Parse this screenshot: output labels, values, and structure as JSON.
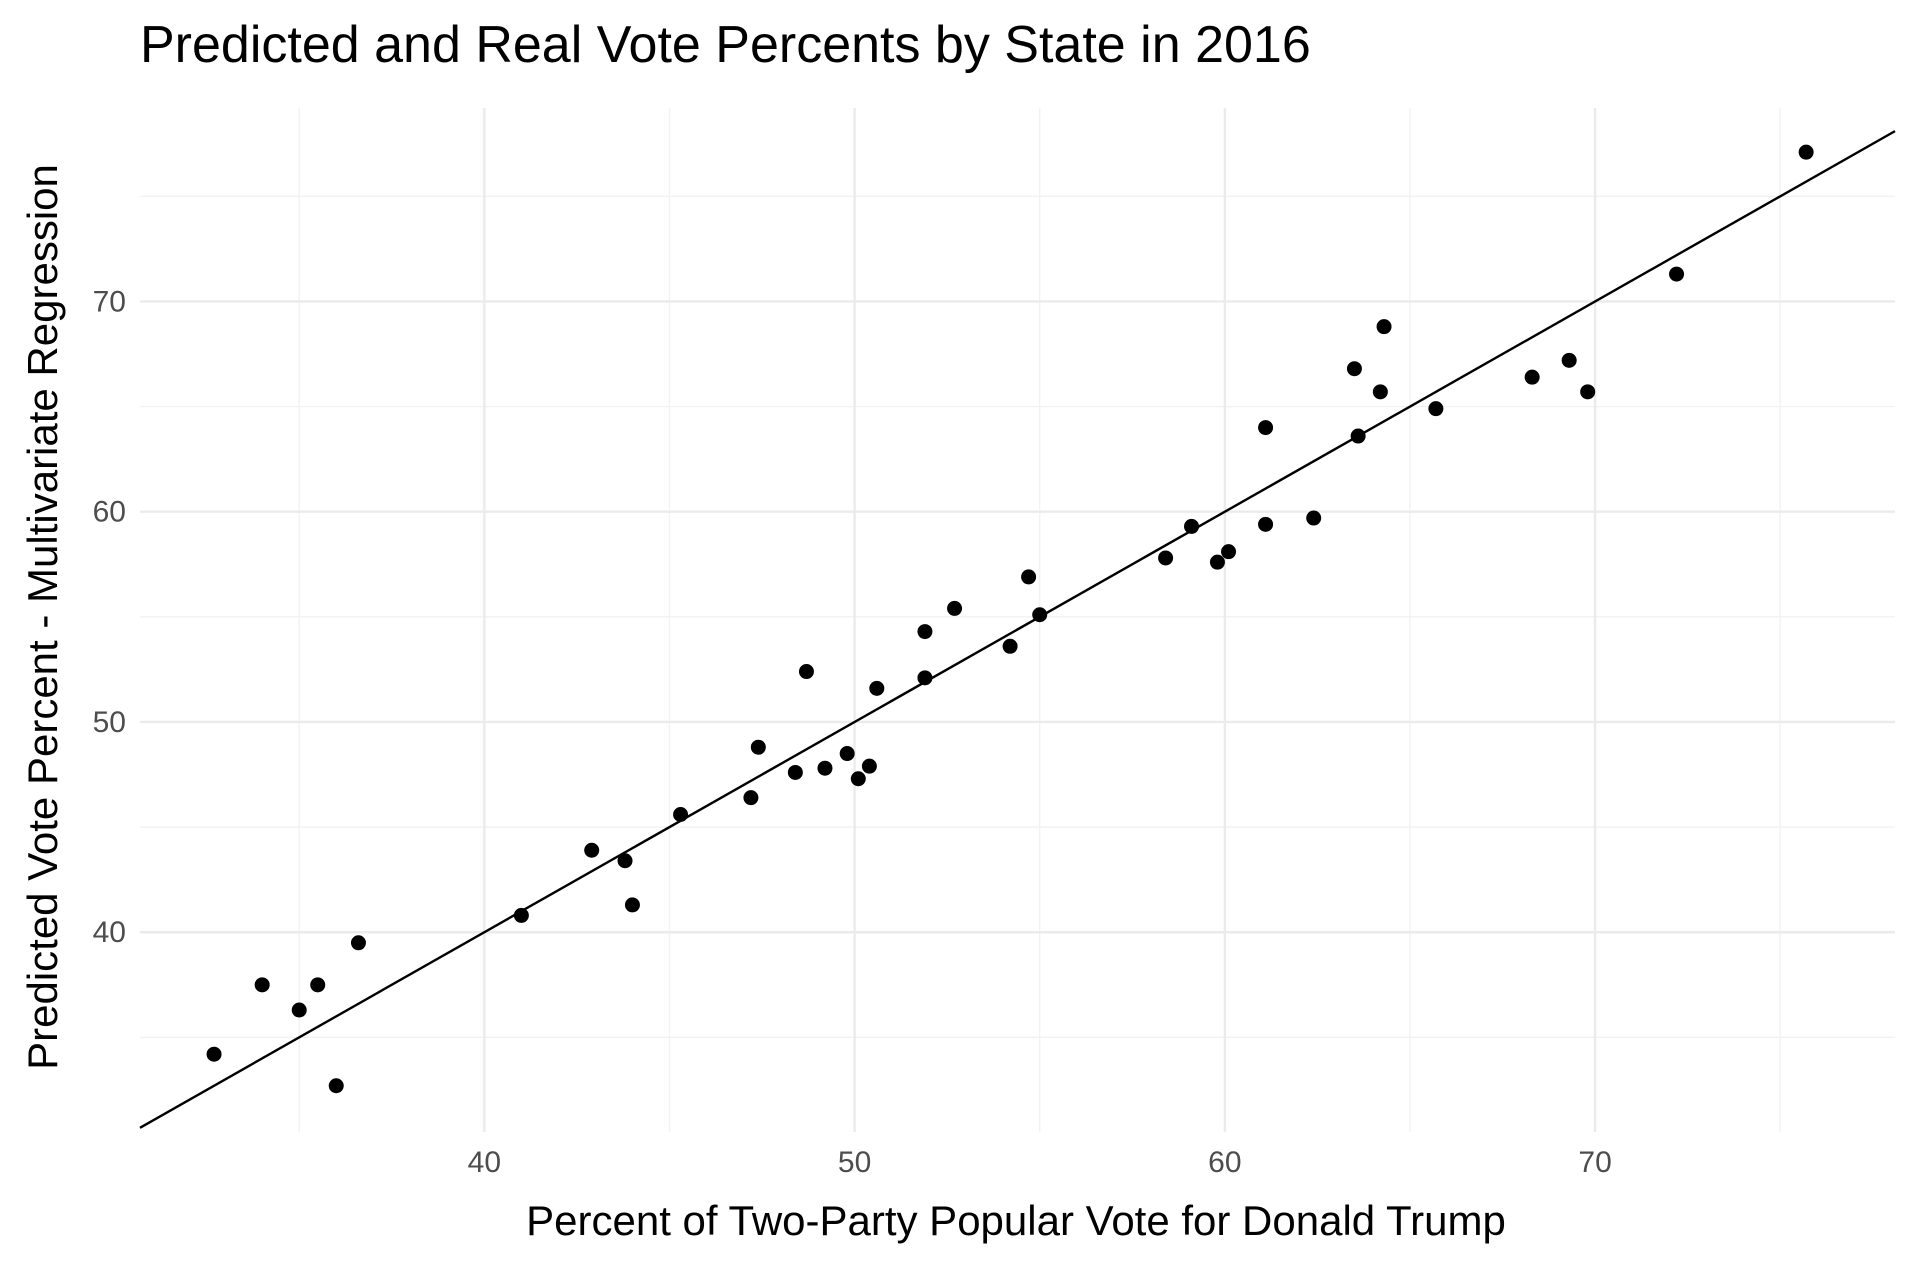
{
  "chart_data": {
    "type": "scatter",
    "title": "Predicted and Real Vote Percents by State in 2016",
    "xlabel": "Percent of Two-Party Popular Vote for Donald Trump",
    "ylabel": "Predicted Vote Percent - Multivariate Regression",
    "xlim": [
      30.7,
      78.1
    ],
    "ylim": [
      30.5,
      79.2
    ],
    "x_ticks": [
      40,
      50,
      60,
      70
    ],
    "y_ticks": [
      40,
      50,
      60,
      70
    ],
    "x_minor_ticks": [
      35,
      45,
      55,
      65,
      75
    ],
    "y_minor_ticks": [
      35,
      45,
      55,
      65,
      75
    ],
    "grid": true,
    "reference_line": {
      "type": "identity",
      "slope": 1,
      "intercept": 0
    },
    "point_color": "#000000",
    "series": [
      {
        "x": [
          32.7,
          34.0,
          35.0,
          35.5,
          36.0,
          36.6,
          41.0,
          42.9,
          43.8,
          44.0,
          45.3,
          47.2,
          47.4,
          48.4,
          48.7,
          49.2,
          49.8,
          50.1,
          50.4,
          50.6,
          51.9,
          51.9,
          52.7,
          54.2,
          54.7,
          55.0,
          58.4,
          59.1,
          59.8,
          60.1,
          61.1,
          61.1,
          62.4,
          63.5,
          63.6,
          64.2,
          64.3,
          65.7,
          68.3,
          69.3,
          69.8,
          72.2,
          75.7
        ],
        "y": [
          34.2,
          37.5,
          36.3,
          37.5,
          32.7,
          39.5,
          40.8,
          43.9,
          43.4,
          41.3,
          45.6,
          46.4,
          48.8,
          47.6,
          52.4,
          47.8,
          48.5,
          47.3,
          47.9,
          51.6,
          54.3,
          52.1,
          55.4,
          53.6,
          56.9,
          55.1,
          57.8,
          59.3,
          57.6,
          58.1,
          59.4,
          64.0,
          59.7,
          66.8,
          63.6,
          65.7,
          68.8,
          64.9,
          66.4,
          67.2,
          65.7,
          71.3,
          77.1
        ]
      }
    ]
  }
}
